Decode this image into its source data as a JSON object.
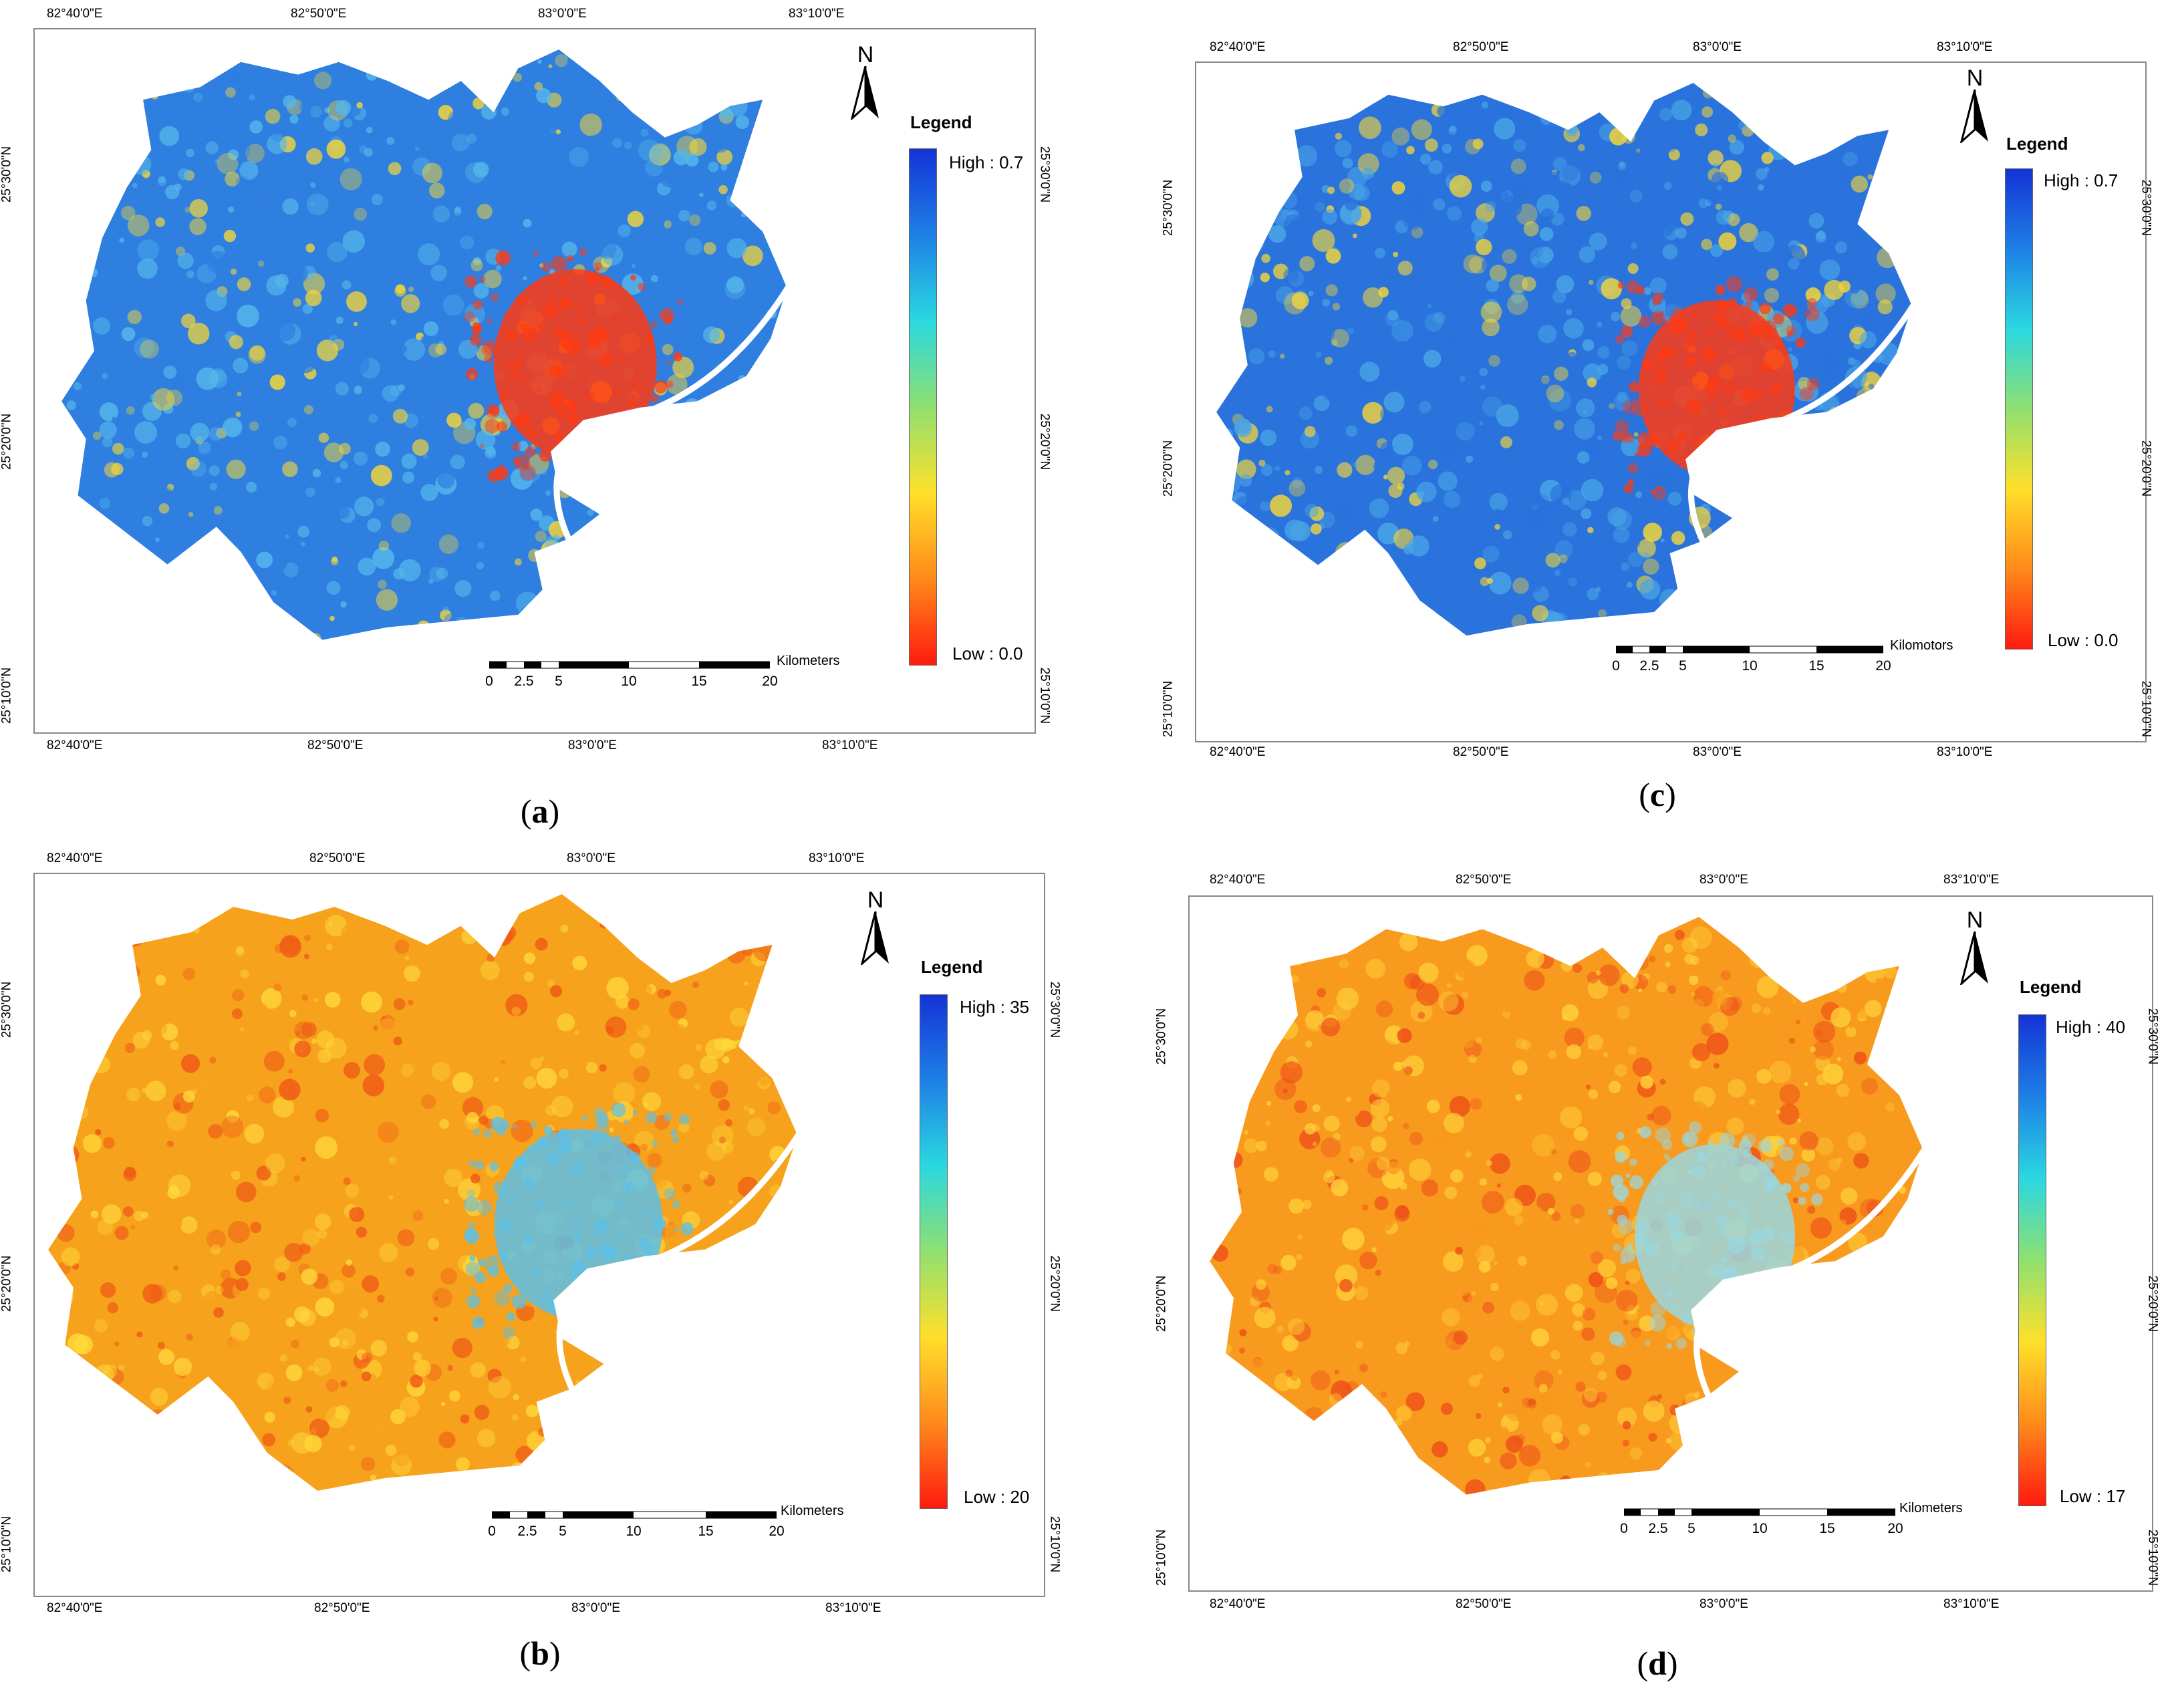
{
  "panels": [
    {
      "id": "a",
      "caption_letter": "a",
      "legend": {
        "title": "Legend",
        "high": "High : 0.7",
        "low": "Low : 0.0",
        "colors": [
          "#1433d6",
          "#1e80e6",
          "#2ad8e0",
          "#8fe070",
          "#ffe02a",
          "#ff8a1a",
          "#ff1a10"
        ]
      },
      "north": "N",
      "scale": {
        "unit": "Kilometers",
        "ticks": [
          "0",
          "2.5",
          "5",
          "10",
          "15",
          "20"
        ]
      },
      "lon_labels": [
        "82°40'0\"E",
        "82°50'0\"E",
        "83°0'0\"E",
        "83°10'0\"E"
      ],
      "lat_labels": [
        "25°30'0\"N",
        "25°20'0\"N",
        "25°10'0\"N"
      ],
      "palette": {
        "base": "#2f7fe0",
        "mid": "#56b8ea",
        "urban": "#ff3a12",
        "speck": "#f2d53a"
      }
    },
    {
      "id": "c",
      "caption_letter": "c",
      "legend": {
        "title": "Legend",
        "high": "High : 0.7",
        "low": "Low : 0.0",
        "colors": [
          "#1433d6",
          "#1e80e6",
          "#2ad8e0",
          "#8fe070",
          "#ffe02a",
          "#ff8a1a",
          "#ff1a10"
        ]
      },
      "north": "N",
      "scale": {
        "unit": "Kilomotors",
        "ticks": [
          "0",
          "2.5",
          "5",
          "10",
          "15",
          "20"
        ]
      },
      "lon_labels": [
        "82°40'0\"E",
        "82°50'0\"E",
        "83°0'0\"E",
        "83°10'0\"E"
      ],
      "lat_labels": [
        "25°30'0\"N",
        "25°20'0\"N",
        "25°10'0\"N"
      ],
      "palette": {
        "base": "#2a72dc",
        "mid": "#4aa6e6",
        "urban": "#ff3a12",
        "speck": "#f2d53a"
      }
    },
    {
      "id": "b",
      "caption_letter": "b",
      "legend": {
        "title": "Legend",
        "high": "High : 35",
        "low": "Low : 20",
        "colors": [
          "#1433d6",
          "#1e80e6",
          "#2ad8e0",
          "#8fe070",
          "#ffe02a",
          "#ff8a1a",
          "#ff1a10"
        ]
      },
      "north": "N",
      "scale": {
        "unit": "Kilometers",
        "ticks": [
          "0",
          "2.5",
          "5",
          "10",
          "15",
          "20"
        ]
      },
      "lon_labels": [
        "82°40'0\"E",
        "82°50'0\"E",
        "83°0'0\"E",
        "83°10'0\"E"
      ],
      "lat_labels": [
        "25°30'0\"N",
        "25°20'0\"N",
        "25°10'0\"N"
      ],
      "palette": {
        "base": "#f6a21c",
        "mid": "#ffd83a",
        "urban": "#5cc0e8",
        "speck": "#ef5a16"
      }
    },
    {
      "id": "d",
      "caption_letter": "d",
      "legend": {
        "title": "Legend",
        "high": "High : 40",
        "low": "Low : 17",
        "colors": [
          "#1433d6",
          "#1e80e6",
          "#2ad8e0",
          "#8fe070",
          "#ffe02a",
          "#ff8a1a",
          "#ff1a10"
        ]
      },
      "north": "N",
      "scale": {
        "unit": "Kilometers",
        "ticks": [
          "0",
          "2.5",
          "5",
          "10",
          "15",
          "20"
        ]
      },
      "lon_labels": [
        "82°40'0\"E",
        "82°50'0\"E",
        "83°0'0\"E",
        "83°10'0\"E"
      ],
      "lat_labels": [
        "25°30'0\"N",
        "25°20'0\"N",
        "25°10'0\"N"
      ],
      "palette": {
        "base": "#f89a1e",
        "mid": "#ffd23a",
        "urban": "#9ad7e0",
        "speck": "#ee5018"
      }
    }
  ]
}
